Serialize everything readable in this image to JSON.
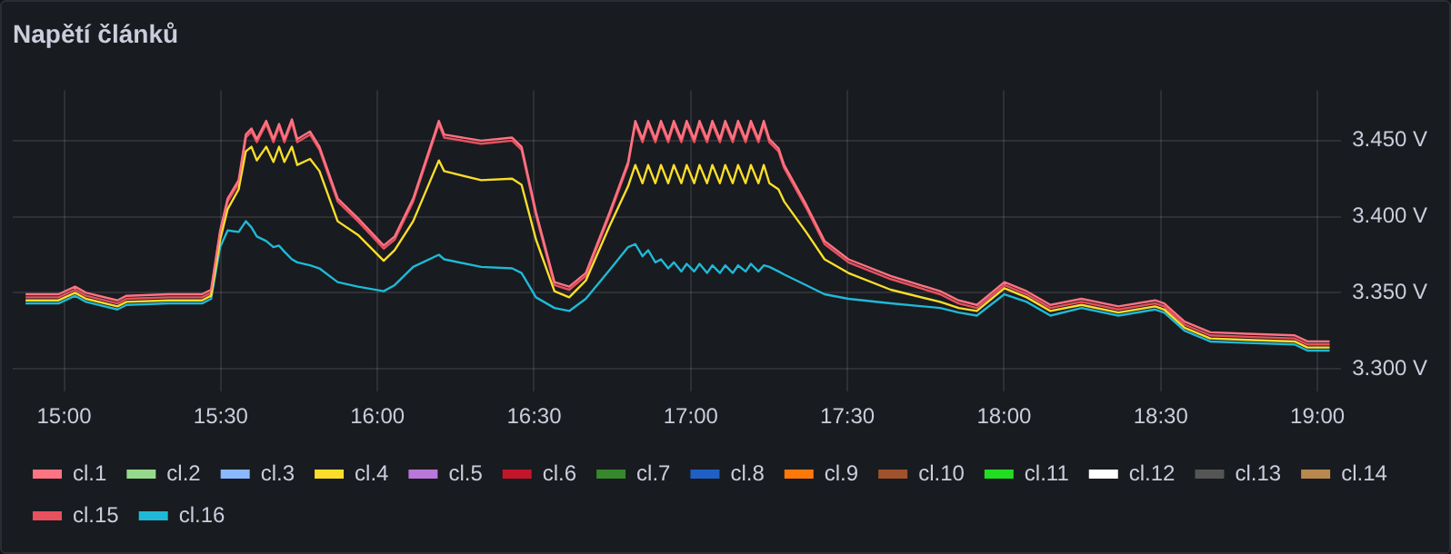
{
  "chart_data": {
    "type": "line",
    "title": "Napětí článků",
    "x": [
      14.877,
      14.982,
      15.035,
      15.07,
      15.17,
      15.199,
      15.334,
      15.44,
      15.469,
      15.498,
      15.522,
      15.557,
      15.58,
      15.598,
      15.615,
      15.645,
      15.668,
      15.686,
      15.703,
      15.727,
      15.744,
      15.785,
      15.815,
      15.873,
      15.938,
      16.02,
      16.055,
      16.114,
      16.196,
      16.213,
      16.331,
      16.43,
      16.46,
      16.506,
      16.565,
      16.612,
      16.665,
      16.741,
      16.8,
      16.823,
      16.846,
      16.864,
      16.887,
      16.905,
      16.928,
      16.946,
      16.97,
      16.987,
      17.011,
      17.028,
      17.052,
      17.069,
      17.093,
      17.11,
      17.134,
      17.151,
      17.175,
      17.192,
      17.216,
      17.233,
      17.251,
      17.28,
      17.298,
      17.368,
      17.427,
      17.503,
      17.638,
      17.796,
      17.855,
      17.913,
      18.001,
      18.072,
      18.148,
      18.247,
      18.365,
      18.482,
      18.511,
      18.576,
      18.658,
      18.775,
      18.927,
      18.968,
      19.039
    ],
    "xlim": [
      14.836,
      19.076
    ],
    "xticks": [
      {
        "value": 15,
        "label": "15:00"
      },
      {
        "value": 15.5,
        "label": "15:30"
      },
      {
        "value": 16,
        "label": "16:00"
      },
      {
        "value": 16.5,
        "label": "16:30"
      },
      {
        "value": 17,
        "label": "17:00"
      },
      {
        "value": 17.5,
        "label": "17:30"
      },
      {
        "value": 18,
        "label": "18:00"
      },
      {
        "value": 18.5,
        "label": "18:30"
      },
      {
        "value": 19,
        "label": "19:00"
      }
    ],
    "ylim": [
      3.285,
      3.483
    ],
    "yticks": [
      {
        "value": 3.3,
        "label": "3.300 V"
      },
      {
        "value": 3.35,
        "label": "3.350 V"
      },
      {
        "value": 3.4,
        "label": "3.400 V"
      },
      {
        "value": 3.45,
        "label": "3.450 V"
      }
    ],
    "grid": true,
    "legend": "bottom",
    "marker": "none",
    "line_style": "solid",
    "series": [
      {
        "name": "cl.1",
        "color": "#ff7383",
        "values": [
          3.349,
          3.349,
          3.354,
          3.35,
          3.345,
          3.348,
          3.349,
          3.349,
          3.352,
          3.391,
          3.412,
          3.424,
          3.454,
          3.458,
          3.451,
          3.463,
          3.451,
          3.461,
          3.451,
          3.464,
          3.451,
          3.456,
          3.446,
          3.412,
          3.399,
          3.381,
          3.387,
          3.412,
          3.463,
          3.454,
          3.45,
          3.452,
          3.446,
          3.403,
          3.357,
          3.354,
          3.363,
          3.403,
          3.436,
          3.463,
          3.451,
          3.463,
          3.451,
          3.463,
          3.451,
          3.463,
          3.451,
          3.463,
          3.451,
          3.463,
          3.451,
          3.463,
          3.451,
          3.463,
          3.451,
          3.463,
          3.451,
          3.463,
          3.451,
          3.463,
          3.451,
          3.445,
          3.434,
          3.408,
          3.384,
          3.372,
          3.361,
          3.351,
          3.345,
          3.342,
          3.357,
          3.351,
          3.342,
          3.346,
          3.341,
          3.345,
          3.343,
          3.331,
          3.324,
          3.323,
          3.322,
          3.318,
          3.318
        ]
      },
      {
        "name": "cl.2",
        "color": "#96d98d",
        "values": [
          null,
          null,
          null,
          null,
          null,
          null,
          null,
          null,
          null,
          null,
          null,
          null,
          null,
          null,
          null,
          null,
          null,
          null,
          null,
          null,
          null,
          null,
          null,
          null,
          null,
          null,
          null,
          null,
          null,
          null,
          null,
          null,
          null,
          null,
          null,
          null,
          null,
          null,
          null,
          null,
          null,
          null,
          null,
          null,
          null,
          null,
          null,
          null,
          null,
          null,
          null,
          null,
          null,
          null,
          null,
          null,
          null,
          null,
          null,
          null,
          null,
          null,
          null,
          null,
          null,
          null,
          null,
          null,
          null,
          null,
          null,
          null,
          null,
          null,
          null,
          null,
          null,
          null,
          null,
          null,
          null,
          null,
          null
        ]
      },
      {
        "name": "cl.3",
        "color": "#8ab8ff",
        "values": [
          null,
          null,
          null,
          null,
          null,
          null,
          null,
          null,
          null,
          null,
          null,
          null,
          null,
          null,
          null,
          null,
          null,
          null,
          null,
          null,
          null,
          null,
          null,
          null,
          null,
          null,
          null,
          null,
          null,
          null,
          null,
          null,
          null,
          null,
          null,
          null,
          null,
          null,
          null,
          null,
          null,
          null,
          null,
          null,
          null,
          null,
          null,
          null,
          null,
          null,
          null,
          null,
          null,
          null,
          null,
          null,
          null,
          null,
          null,
          null,
          null,
          null,
          null,
          null,
          null,
          null,
          null,
          null,
          null,
          null,
          null,
          null,
          null,
          null,
          null,
          null,
          null,
          null,
          null,
          null,
          null,
          null,
          null
        ]
      },
      {
        "name": "cl.4",
        "color": "#fade2a",
        "values": [
          3.345,
          3.345,
          3.35,
          3.346,
          3.341,
          3.344,
          3.345,
          3.345,
          3.348,
          3.385,
          3.405,
          3.418,
          3.443,
          3.446,
          3.437,
          3.446,
          3.436,
          3.446,
          3.436,
          3.446,
          3.434,
          3.438,
          3.43,
          3.397,
          3.388,
          3.371,
          3.378,
          3.397,
          3.437,
          3.43,
          3.424,
          3.425,
          3.421,
          3.385,
          3.351,
          3.347,
          3.358,
          3.394,
          3.42,
          3.434,
          3.422,
          3.434,
          3.422,
          3.434,
          3.422,
          3.434,
          3.422,
          3.434,
          3.422,
          3.434,
          3.422,
          3.434,
          3.422,
          3.434,
          3.422,
          3.434,
          3.422,
          3.434,
          3.422,
          3.434,
          3.422,
          3.418,
          3.41,
          3.39,
          3.372,
          3.363,
          3.352,
          3.344,
          3.34,
          3.338,
          3.353,
          3.347,
          3.338,
          3.342,
          3.337,
          3.341,
          3.339,
          3.327,
          3.32,
          3.319,
          3.318,
          3.314,
          3.314
        ]
      },
      {
        "name": "cl.5",
        "color": "#b877d9",
        "values": [
          null,
          null,
          null,
          null,
          null,
          null,
          null,
          null,
          null,
          null,
          null,
          null,
          null,
          null,
          null,
          null,
          null,
          null,
          null,
          null,
          null,
          null,
          null,
          null,
          null,
          null,
          null,
          null,
          null,
          null,
          null,
          null,
          null,
          null,
          null,
          null,
          null,
          null,
          null,
          null,
          null,
          null,
          null,
          null,
          null,
          null,
          null,
          null,
          null,
          null,
          null,
          null,
          null,
          null,
          null,
          null,
          null,
          null,
          null,
          null,
          null,
          null,
          null,
          null,
          null,
          null,
          null,
          null,
          null,
          null,
          null,
          null,
          null,
          null,
          null,
          null,
          null,
          null,
          null,
          null,
          null,
          null,
          null
        ]
      },
      {
        "name": "cl.6",
        "color": "#c4162a",
        "values": [
          null,
          null,
          null,
          null,
          null,
          null,
          null,
          null,
          null,
          null,
          null,
          null,
          null,
          null,
          null,
          null,
          null,
          null,
          null,
          null,
          null,
          null,
          null,
          null,
          null,
          null,
          null,
          null,
          null,
          null,
          null,
          null,
          null,
          null,
          null,
          null,
          null,
          null,
          null,
          null,
          null,
          null,
          null,
          null,
          null,
          null,
          null,
          null,
          null,
          null,
          null,
          null,
          null,
          null,
          null,
          null,
          null,
          null,
          null,
          null,
          null,
          null,
          null,
          null,
          null,
          null,
          null,
          null,
          null,
          null,
          null,
          null,
          null,
          null,
          null,
          null,
          null,
          null,
          null,
          null,
          null,
          null,
          null
        ]
      },
      {
        "name": "cl.7",
        "color": "#37872d",
        "values": [
          null,
          null,
          null,
          null,
          null,
          null,
          null,
          null,
          null,
          null,
          null,
          null,
          null,
          null,
          null,
          null,
          null,
          null,
          null,
          null,
          null,
          null,
          null,
          null,
          null,
          null,
          null,
          null,
          null,
          null,
          null,
          null,
          null,
          null,
          null,
          null,
          null,
          null,
          null,
          null,
          null,
          null,
          null,
          null,
          null,
          null,
          null,
          null,
          null,
          null,
          null,
          null,
          null,
          null,
          null,
          null,
          null,
          null,
          null,
          null,
          null,
          null,
          null,
          null,
          null,
          null,
          null,
          null,
          null,
          null,
          null,
          null,
          null,
          null,
          null,
          null,
          null,
          null,
          null,
          null,
          null,
          null,
          null
        ]
      },
      {
        "name": "cl.8",
        "color": "#1f60c4",
        "values": [
          null,
          null,
          null,
          null,
          null,
          null,
          null,
          null,
          null,
          null,
          null,
          null,
          null,
          null,
          null,
          null,
          null,
          null,
          null,
          null,
          null,
          null,
          null,
          null,
          null,
          null,
          null,
          null,
          null,
          null,
          null,
          null,
          null,
          null,
          null,
          null,
          null,
          null,
          null,
          null,
          null,
          null,
          null,
          null,
          null,
          null,
          null,
          null,
          null,
          null,
          null,
          null,
          null,
          null,
          null,
          null,
          null,
          null,
          null,
          null,
          null,
          null,
          null,
          null,
          null,
          null,
          null,
          null,
          null,
          null,
          null,
          null,
          null,
          null,
          null,
          null,
          null,
          null,
          null,
          null,
          null,
          null,
          null
        ]
      },
      {
        "name": "cl.9",
        "color": "#ff780a",
        "values": [
          null,
          null,
          null,
          null,
          null,
          null,
          null,
          null,
          null,
          null,
          null,
          null,
          null,
          null,
          null,
          null,
          null,
          null,
          null,
          null,
          null,
          null,
          null,
          null,
          null,
          null,
          null,
          null,
          null,
          null,
          null,
          null,
          null,
          null,
          null,
          null,
          null,
          null,
          null,
          null,
          null,
          null,
          null,
          null,
          null,
          null,
          null,
          null,
          null,
          null,
          null,
          null,
          null,
          null,
          null,
          null,
          null,
          null,
          null,
          null,
          null,
          null,
          null,
          null,
          null,
          null,
          null,
          null,
          null,
          null,
          null,
          null,
          null,
          null,
          null,
          null,
          null,
          null,
          null,
          null,
          null,
          null,
          null
        ]
      },
      {
        "name": "cl.10",
        "color": "#a0522d",
        "values": [
          null,
          null,
          null,
          null,
          null,
          null,
          null,
          null,
          null,
          null,
          null,
          null,
          null,
          null,
          null,
          null,
          null,
          null,
          null,
          null,
          null,
          null,
          null,
          null,
          null,
          null,
          null,
          null,
          null,
          null,
          null,
          null,
          null,
          null,
          null,
          null,
          null,
          null,
          null,
          null,
          null,
          null,
          null,
          null,
          null,
          null,
          null,
          null,
          null,
          null,
          null,
          null,
          null,
          null,
          null,
          null,
          null,
          null,
          null,
          null,
          null,
          null,
          null,
          null,
          null,
          null,
          null,
          null,
          null,
          null,
          null,
          null,
          null,
          null,
          null,
          null,
          null,
          null,
          null,
          null,
          null,
          null,
          null
        ]
      },
      {
        "name": "cl.11",
        "color": "#22dd22",
        "values": [
          null,
          null,
          null,
          null,
          null,
          null,
          null,
          null,
          null,
          null,
          null,
          null,
          null,
          null,
          null,
          null,
          null,
          null,
          null,
          null,
          null,
          null,
          null,
          null,
          null,
          null,
          null,
          null,
          null,
          null,
          null,
          null,
          null,
          null,
          null,
          null,
          null,
          null,
          null,
          null,
          null,
          null,
          null,
          null,
          null,
          null,
          null,
          null,
          null,
          null,
          null,
          null,
          null,
          null,
          null,
          null,
          null,
          null,
          null,
          null,
          null,
          null,
          null,
          null,
          null,
          null,
          null,
          null,
          null,
          null,
          null,
          null,
          null,
          null,
          null,
          null,
          null,
          null,
          null,
          null,
          null,
          null,
          null
        ]
      },
      {
        "name": "cl.12",
        "color": "#ffffff",
        "values": [
          null,
          null,
          null,
          null,
          null,
          null,
          null,
          null,
          null,
          null,
          null,
          null,
          null,
          null,
          null,
          null,
          null,
          null,
          null,
          null,
          null,
          null,
          null,
          null,
          null,
          null,
          null,
          null,
          null,
          null,
          null,
          null,
          null,
          null,
          null,
          null,
          null,
          null,
          null,
          null,
          null,
          null,
          null,
          null,
          null,
          null,
          null,
          null,
          null,
          null,
          null,
          null,
          null,
          null,
          null,
          null,
          null,
          null,
          null,
          null,
          null,
          null,
          null,
          null,
          null,
          null,
          null,
          null,
          null,
          null,
          null,
          null,
          null,
          null,
          null,
          null,
          null,
          null,
          null,
          null,
          null,
          null,
          null
        ]
      },
      {
        "name": "cl.13",
        "color": "#555555",
        "values": [
          null,
          null,
          null,
          null,
          null,
          null,
          null,
          null,
          null,
          null,
          null,
          null,
          null,
          null,
          null,
          null,
          null,
          null,
          null,
          null,
          null,
          null,
          null,
          null,
          null,
          null,
          null,
          null,
          null,
          null,
          null,
          null,
          null,
          null,
          null,
          null,
          null,
          null,
          null,
          null,
          null,
          null,
          null,
          null,
          null,
          null,
          null,
          null,
          null,
          null,
          null,
          null,
          null,
          null,
          null,
          null,
          null,
          null,
          null,
          null,
          null,
          null,
          null,
          null,
          null,
          null,
          null,
          null,
          null,
          null,
          null,
          null,
          null,
          null,
          null,
          null,
          null,
          null,
          null,
          null,
          null,
          null,
          null
        ]
      },
      {
        "name": "cl.14",
        "color": "#b8884f",
        "values": [
          null,
          null,
          null,
          null,
          null,
          null,
          null,
          null,
          null,
          null,
          null,
          null,
          null,
          null,
          null,
          null,
          null,
          null,
          null,
          null,
          null,
          null,
          null,
          null,
          null,
          null,
          null,
          null,
          null,
          null,
          null,
          null,
          null,
          null,
          null,
          null,
          null,
          null,
          null,
          null,
          null,
          null,
          null,
          null,
          null,
          null,
          null,
          null,
          null,
          null,
          null,
          null,
          null,
          null,
          null,
          null,
          null,
          null,
          null,
          null,
          null,
          null,
          null,
          null,
          null,
          null,
          null,
          null,
          null,
          null,
          null,
          null,
          null,
          null,
          null,
          null,
          null,
          null,
          null,
          null,
          null,
          null,
          null
        ]
      },
      {
        "name": "cl.15",
        "color": "#e8505e",
        "values": [
          3.347,
          3.347,
          3.352,
          3.348,
          3.343,
          3.346,
          3.347,
          3.347,
          3.35,
          3.389,
          3.41,
          3.422,
          3.452,
          3.456,
          3.449,
          3.461,
          3.449,
          3.459,
          3.449,
          3.462,
          3.449,
          3.454,
          3.444,
          3.41,
          3.397,
          3.379,
          3.385,
          3.41,
          3.461,
          3.452,
          3.448,
          3.45,
          3.444,
          3.401,
          3.355,
          3.352,
          3.361,
          3.401,
          3.434,
          3.461,
          3.449,
          3.461,
          3.449,
          3.461,
          3.449,
          3.461,
          3.449,
          3.461,
          3.449,
          3.461,
          3.449,
          3.461,
          3.449,
          3.461,
          3.449,
          3.461,
          3.449,
          3.461,
          3.449,
          3.461,
          3.449,
          3.443,
          3.432,
          3.406,
          3.382,
          3.37,
          3.359,
          3.349,
          3.343,
          3.34,
          3.355,
          3.349,
          3.34,
          3.344,
          3.339,
          3.343,
          3.341,
          3.329,
          3.322,
          3.321,
          3.32,
          3.316,
          3.316
        ]
      },
      {
        "name": "cl.16",
        "color": "#1fb9d6",
        "values": [
          3.343,
          3.343,
          3.348,
          3.344,
          3.339,
          3.342,
          3.343,
          3.343,
          3.346,
          3.38,
          3.391,
          3.39,
          3.397,
          3.393,
          3.387,
          3.384,
          3.38,
          3.381,
          3.377,
          3.372,
          3.37,
          3.368,
          3.366,
          3.357,
          3.354,
          3.351,
          3.355,
          3.367,
          3.375,
          3.372,
          3.367,
          3.366,
          3.363,
          3.347,
          3.34,
          3.338,
          3.346,
          3.365,
          3.38,
          3.382,
          3.374,
          3.378,
          3.37,
          3.372,
          3.366,
          3.37,
          3.364,
          3.369,
          3.364,
          3.369,
          3.363,
          3.368,
          3.363,
          3.368,
          3.363,
          3.368,
          3.364,
          3.369,
          3.364,
          3.368,
          3.367,
          3.364,
          3.362,
          3.355,
          3.349,
          3.346,
          3.343,
          3.34,
          3.337,
          3.335,
          3.349,
          3.344,
          3.335,
          3.34,
          3.335,
          3.339,
          3.337,
          3.325,
          3.318,
          3.317,
          3.316,
          3.312,
          3.312
        ]
      }
    ]
  }
}
